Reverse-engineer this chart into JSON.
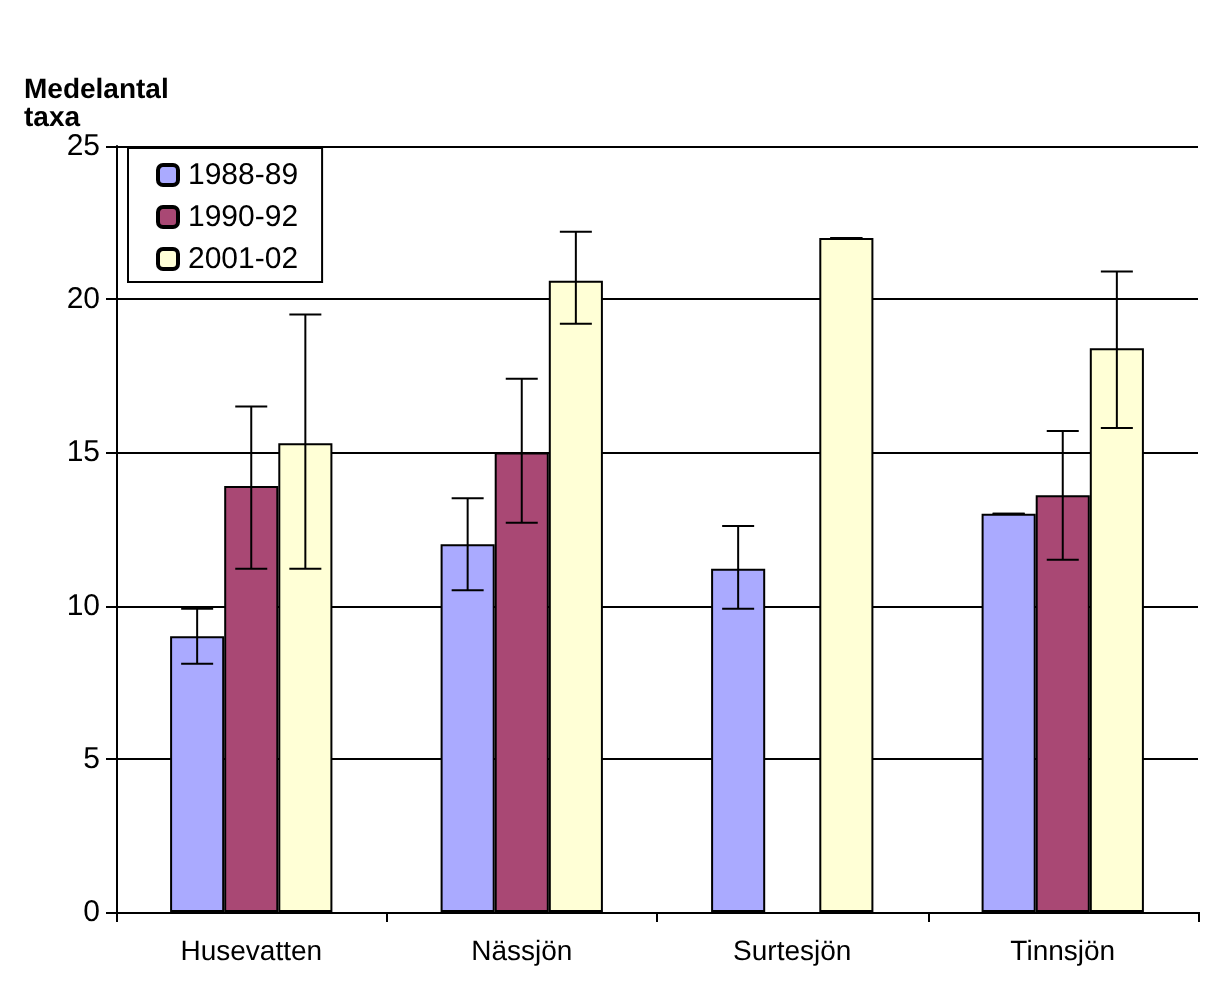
{
  "chart_data": {
    "type": "bar",
    "ylabel": "Medelantal\ntaxa",
    "categories": [
      "Husevatten",
      "Nässjön",
      "Surtesjön",
      "Tinnsjön"
    ],
    "series": [
      {
        "name": "1988-89",
        "color": "#aaaaff",
        "values": [
          9.0,
          12.0,
          11.2,
          13.0
        ],
        "errors": [
          [
            8.1,
            9.9
          ],
          [
            10.5,
            13.5
          ],
          [
            9.9,
            12.6
          ],
          [
            13.0,
            13.0
          ]
        ]
      },
      {
        "name": "1990-92",
        "color": "#a94874",
        "values": [
          13.9,
          15.0,
          null,
          13.6
        ],
        "errors": [
          [
            11.2,
            16.5
          ],
          [
            12.7,
            17.4
          ],
          null,
          [
            11.5,
            15.7
          ]
        ]
      },
      {
        "name": "2001-02",
        "color": "#ffffd6",
        "values": [
          15.3,
          20.6,
          22.0,
          18.4
        ],
        "errors": [
          [
            11.2,
            19.5
          ],
          [
            19.2,
            22.2
          ],
          [
            22.0,
            22.0
          ],
          [
            15.8,
            20.9
          ]
        ]
      }
    ],
    "ylim": [
      0,
      25
    ],
    "yticks": [
      0,
      5,
      10,
      15,
      20,
      25
    ],
    "grid": "y",
    "legend": "top left"
  }
}
